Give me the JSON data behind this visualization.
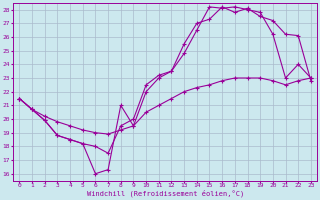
{
  "xlabel": "Windchill (Refroidissement éolien,°C)",
  "xlim": [
    -0.5,
    23.5
  ],
  "ylim": [
    15.5,
    28.5
  ],
  "xticks": [
    0,
    1,
    2,
    3,
    4,
    5,
    6,
    7,
    8,
    9,
    10,
    11,
    12,
    13,
    14,
    15,
    16,
    17,
    18,
    19,
    20,
    21,
    22,
    23
  ],
  "yticks": [
    16,
    17,
    18,
    19,
    20,
    21,
    22,
    23,
    24,
    25,
    26,
    27,
    28
  ],
  "line_color": "#990099",
  "bg_color": "#cce8ee",
  "grid_color": "#aabbcc",
  "line1_x": [
    0,
    1,
    2,
    3,
    4,
    5,
    6,
    7,
    8,
    9,
    10,
    11,
    12,
    13,
    14,
    15,
    16,
    17,
    18,
    19,
    20,
    21,
    22,
    23
  ],
  "line1_y": [
    21.5,
    20.7,
    19.9,
    18.8,
    18.5,
    18.2,
    16.0,
    16.3,
    21.0,
    19.5,
    22.0,
    23.0,
    23.5,
    24.8,
    26.5,
    28.2,
    28.1,
    28.2,
    28.0,
    27.8,
    26.2,
    23.0,
    24.0,
    23.0
  ],
  "line2_x": [
    0,
    1,
    2,
    3,
    4,
    5,
    6,
    7,
    8,
    9,
    10,
    11,
    12,
    13,
    14,
    15,
    16,
    17,
    18,
    19,
    20,
    21,
    22,
    23
  ],
  "line2_y": [
    21.5,
    20.7,
    19.9,
    18.8,
    18.5,
    18.2,
    18.0,
    17.5,
    19.5,
    20.0,
    22.5,
    23.2,
    23.5,
    25.5,
    27.0,
    27.3,
    28.2,
    27.8,
    28.1,
    27.5,
    27.2,
    26.2,
    26.1,
    22.8
  ],
  "line3_x": [
    0,
    1,
    2,
    3,
    4,
    5,
    6,
    7,
    8,
    9,
    10,
    11,
    12,
    13,
    14,
    15,
    16,
    17,
    18,
    19,
    20,
    21,
    22,
    23
  ],
  "line3_y": [
    21.5,
    20.7,
    20.2,
    19.8,
    19.5,
    19.2,
    19.0,
    18.9,
    19.2,
    19.5,
    20.5,
    21.0,
    21.5,
    22.0,
    22.3,
    22.5,
    22.8,
    23.0,
    23.0,
    23.0,
    22.8,
    22.5,
    22.8,
    23.0
  ]
}
